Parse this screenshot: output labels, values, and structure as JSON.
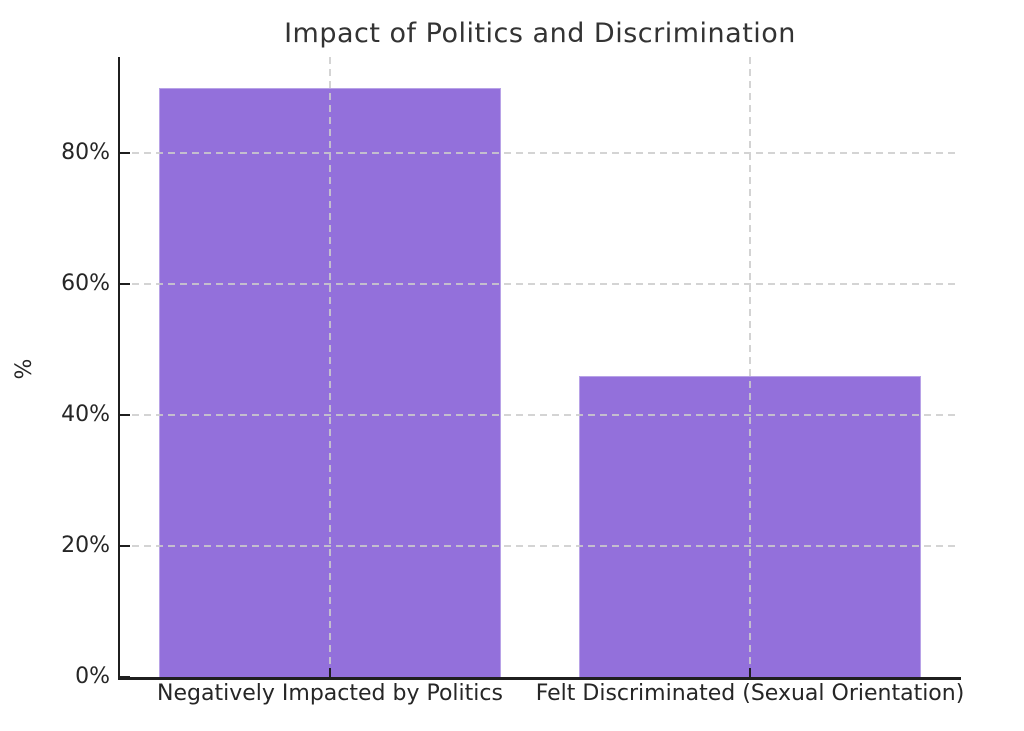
{
  "chart_data": {
    "type": "bar",
    "title": "Impact of Politics and Discrimination",
    "categories": [
      "Negatively Impacted by Politics",
      "Felt Discriminated (Sexual Orientation)"
    ],
    "values": [
      90,
      46
    ],
    "xlabel": "",
    "ylabel": "%",
    "ylim": [
      0,
      94.7
    ],
    "yticks": [
      0,
      20,
      40,
      60,
      80
    ],
    "ytick_labels": [
      "0%",
      "20%",
      "40%",
      "60%",
      "80%"
    ],
    "bar_width_fraction": 0.814,
    "grid": "dashed, both axes, drawn above bars",
    "legend": "none",
    "spines": "left and bottom only, ticks point inward"
  },
  "colors": {
    "bar": "#9370db",
    "grid": "#cccccc",
    "spine": "#1f1f1f",
    "text": "#262626",
    "title": "#333333",
    "background": "#ffffff"
  }
}
